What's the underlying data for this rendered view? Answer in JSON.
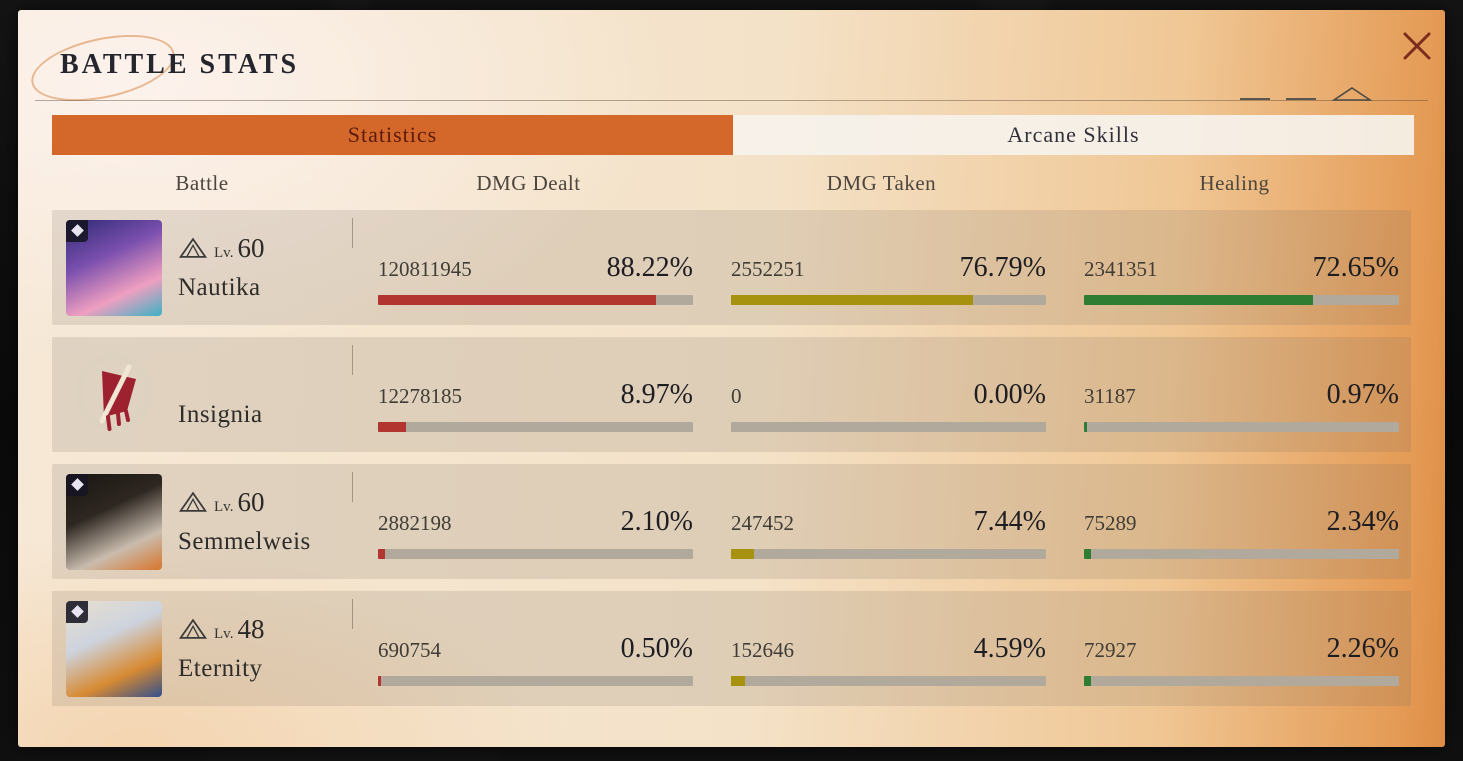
{
  "panel": {
    "title": "BATTLE STATS"
  },
  "icons": {
    "close": "x-cross",
    "insight": "mountain-peaks",
    "decor": "triangle-outline"
  },
  "tabs": {
    "statistics": {
      "label": "Statistics",
      "active": true
    },
    "arcane": {
      "label": "Arcane Skills",
      "active": false
    }
  },
  "columns": {
    "battle": "Battle",
    "dmg_dealt": "DMG Dealt",
    "dmg_taken": "DMG Taken",
    "healing": "Healing"
  },
  "colors": {
    "tab_active_bg": "#d4682a",
    "tab_active_text": "#5c1a0c",
    "tab_inactive_bg": "rgba(246,242,235,0.92)",
    "tab_inactive_text": "#30303a",
    "bar_track": "#b1a99c",
    "dmg_dealt_bar": "#b23530",
    "dmg_taken_bar": "#a6920e",
    "healing_bar": "#2f7d33",
    "insignia_red": "#9e2130"
  },
  "rows": [
    {
      "name": "Nautika",
      "level": {
        "prefix": "Lv.",
        "value": "60"
      },
      "avatar": {
        "name": "nautika-portrait",
        "emblem": false,
        "badge": true,
        "colors": [
          "#2e2a74",
          "#7a4fae",
          "#ef9fc0",
          "#3bb2c4"
        ]
      },
      "stats": {
        "dmg_dealt": {
          "value": "120811945",
          "percent": "88.22%",
          "fraction": 88.22
        },
        "dmg_taken": {
          "value": "2552251",
          "percent": "76.79%",
          "fraction": 76.79
        },
        "healing": {
          "value": "2341351",
          "percent": "72.65%",
          "fraction": 72.65
        }
      }
    },
    {
      "name": "Insignia",
      "level": null,
      "avatar": {
        "name": "insignia-emblem",
        "emblem": true,
        "badge": false,
        "colors": []
      },
      "stats": {
        "dmg_dealt": {
          "value": "12278185",
          "percent": "8.97%",
          "fraction": 8.97
        },
        "dmg_taken": {
          "value": "0",
          "percent": "0.00%",
          "fraction": 0
        },
        "healing": {
          "value": "31187",
          "percent": "0.97%",
          "fraction": 0.97
        }
      }
    },
    {
      "name": "Semmelweis",
      "level": {
        "prefix": "Lv.",
        "value": "60"
      },
      "avatar": {
        "name": "semmelweis-portrait",
        "emblem": false,
        "badge": true,
        "colors": [
          "#191511",
          "#2e2721",
          "#c9bcae",
          "#d8752b"
        ]
      },
      "stats": {
        "dmg_dealt": {
          "value": "2882198",
          "percent": "2.10%",
          "fraction": 2.1
        },
        "dmg_taken": {
          "value": "247452",
          "percent": "7.44%",
          "fraction": 7.44
        },
        "healing": {
          "value": "75289",
          "percent": "2.34%",
          "fraction": 2.34
        }
      }
    },
    {
      "name": "Eternity",
      "level": {
        "prefix": "Lv.",
        "value": "48"
      },
      "avatar": {
        "name": "eternity-portrait",
        "emblem": false,
        "badge": true,
        "colors": [
          "#e9e0d0",
          "#cdd3de",
          "#d78a33",
          "#33508c"
        ]
      },
      "stats": {
        "dmg_dealt": {
          "value": "690754",
          "percent": "0.50%",
          "fraction": 0.5
        },
        "dmg_taken": {
          "value": "152646",
          "percent": "4.59%",
          "fraction": 4.59
        },
        "healing": {
          "value": "72927",
          "percent": "2.26%",
          "fraction": 2.26
        }
      }
    }
  ]
}
